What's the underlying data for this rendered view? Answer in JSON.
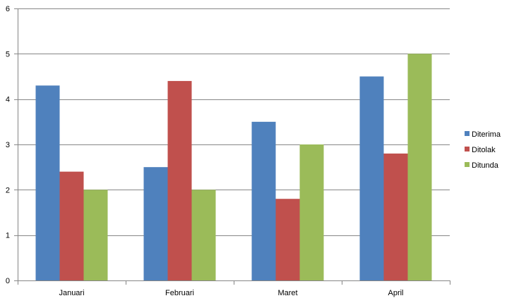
{
  "chart_data": {
    "type": "bar",
    "categories": [
      "Januari",
      "Februari",
      "Maret",
      "April"
    ],
    "series": [
      {
        "name": "Diterima",
        "color": "#4F81BD",
        "values": [
          4.3,
          2.5,
          3.5,
          4.5
        ]
      },
      {
        "name": "Ditolak",
        "color": "#C0504D",
        "values": [
          2.4,
          4.4,
          1.8,
          2.8
        ]
      },
      {
        "name": "Ditunda",
        "color": "#9BBB59",
        "values": [
          2,
          2,
          3,
          5
        ]
      }
    ],
    "ylim": [
      0,
      6
    ],
    "yticks": [
      0,
      1,
      2,
      3,
      4,
      5,
      6
    ],
    "grid": true,
    "legend_position": "right",
    "title": "",
    "xlabel": "",
    "ylabel": ""
  }
}
